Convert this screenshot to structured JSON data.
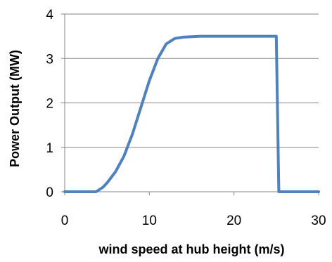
{
  "chart_data": {
    "type": "line",
    "title": "",
    "xlabel": "wind speed at hub height (m/s)",
    "ylabel": "Power Output (MW)",
    "xlim": [
      0,
      30
    ],
    "ylim": [
      0,
      4
    ],
    "xticks": [
      0,
      10,
      20,
      30
    ],
    "yticks": [
      0,
      1,
      2,
      3,
      4
    ],
    "grid": "horizontal",
    "legend": "none",
    "series": [
      {
        "x": [
          0,
          3.7,
          4.5,
          5.0,
          6.0,
          7.0,
          8.0,
          9.0,
          10.0,
          11.0,
          12.0,
          13.0,
          14.0,
          15.0,
          16.0,
          20.0,
          25.0,
          25.3,
          30.0
        ],
        "y": [
          0,
          0,
          0.1,
          0.2,
          0.45,
          0.8,
          1.3,
          1.9,
          2.5,
          3.0,
          3.33,
          3.45,
          3.48,
          3.49,
          3.5,
          3.5,
          3.5,
          0,
          0
        ],
        "color": "#4f81bd"
      }
    ]
  }
}
